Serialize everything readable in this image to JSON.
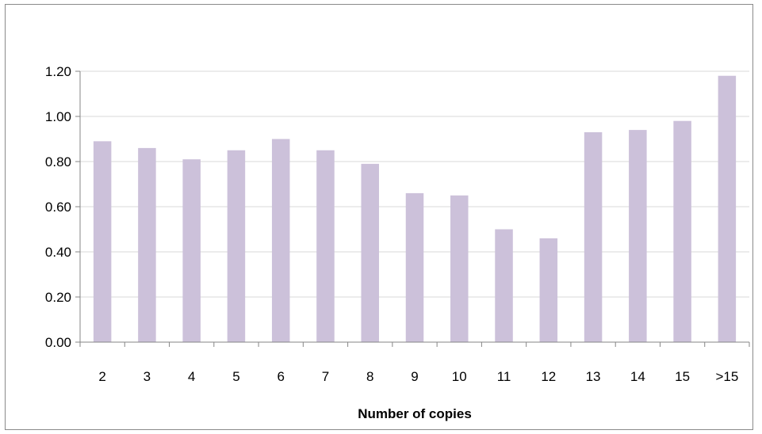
{
  "chart_data": {
    "type": "bar",
    "title": "",
    "xlabel": "Number of copies",
    "ylabel": "",
    "categories": [
      "2",
      "3",
      "4",
      "5",
      "6",
      "7",
      "8",
      "9",
      "10",
      "11",
      "12",
      "13",
      "14",
      "15",
      ">15"
    ],
    "values": [
      0.89,
      0.86,
      0.81,
      0.85,
      0.9,
      0.85,
      0.79,
      0.66,
      0.65,
      0.5,
      0.46,
      0.93,
      0.94,
      0.98,
      1.18
    ],
    "ylim": [
      0,
      1.2
    ],
    "yticks": [
      "0.00",
      "0.20",
      "0.40",
      "0.60",
      "0.80",
      "1.00",
      "1.20"
    ],
    "grid": true,
    "legend": "none",
    "bar_color": "#ccc1da",
    "grid_color": "#d9d9d9",
    "axis_color": "#868686"
  }
}
